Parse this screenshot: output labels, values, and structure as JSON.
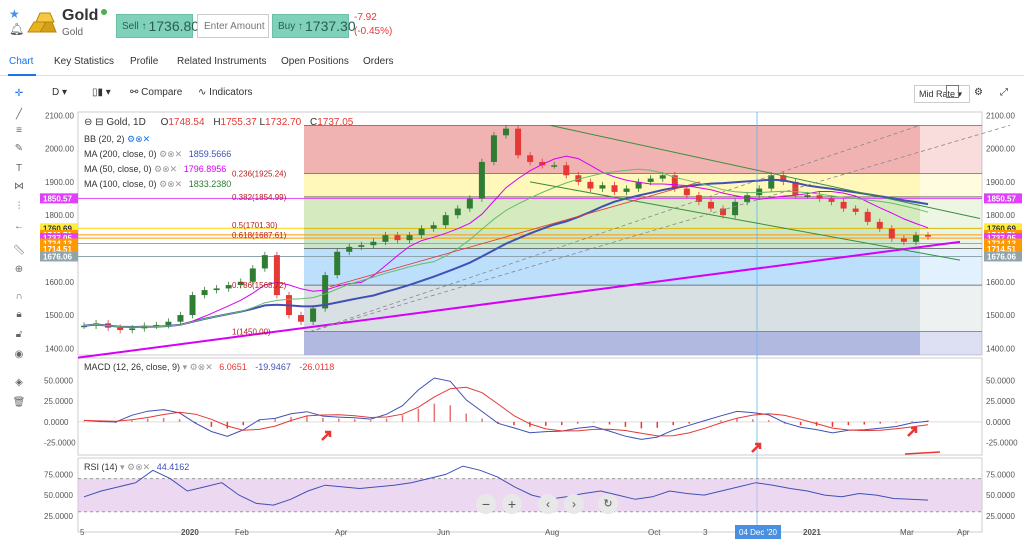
{
  "instrument": {
    "name": "Gold",
    "subname": "Gold",
    "sell_label": "Sell",
    "sell_price": "1736.80",
    "amount_placeholder": "Enter Amount",
    "buy_label": "Buy",
    "buy_price": "1737.30",
    "change_abs": "-7.92",
    "change_pct": "(-0.45%)"
  },
  "tabs": [
    "Chart",
    "Key Statistics",
    "Profile",
    "Related Instruments",
    "Open Positions",
    "Orders"
  ],
  "toolbar": {
    "interval": "D",
    "compare": "Compare",
    "indicators": "Indicators",
    "mid_rate": "Mid Rate"
  },
  "legend": {
    "symbol": "Gold, 1D",
    "open_label": "O",
    "open": "1748.54",
    "high_label": "H",
    "high": "1755.37",
    "low_label": "L",
    "low": "1732.70",
    "close_label": "C",
    "close": "1737.05",
    "bb": "BB (20, 2)",
    "ma200": "MA (200, close, 0)",
    "ma200_val": "1859.5666",
    "ma50": "MA (50, close, 0)",
    "ma50_val": "1796.8956",
    "ma100": "MA (100, close, 0)",
    "ma100_val": "1833.2380"
  },
  "fib_labels": [
    {
      "text": "0.236(1925.24)",
      "price": 1925
    },
    {
      "text": "0.382(1854.99)",
      "price": 1855
    },
    {
      "text": "0.5(1701.30)",
      "price": 1770
    },
    {
      "text": "0.618(1687.61)",
      "price": 1740
    },
    {
      "text": "0.786(1568.72)",
      "price": 1590
    },
    {
      "text": "1(1450.00)",
      "price": 1450
    }
  ],
  "price_axis": {
    "ticks": [
      2100,
      2000,
      1900,
      1800,
      1700,
      1600,
      1500,
      1400
    ],
    "tick_labels": [
      "2100.00",
      "2000.00",
      "1900.00",
      "1800.00",
      "1700.00",
      "1600.00",
      "1500.00",
      "1400.00"
    ],
    "left_tags": [
      {
        "text": "1850.57",
        "price": 1850.57,
        "color": "#e040fb"
      },
      {
        "text": "1760.69",
        "price": 1760.69,
        "color": "#ffeb3b"
      },
      {
        "text": "1740.71",
        "price": 1740.71,
        "color": "#ff9800"
      },
      {
        "text": "1737.05",
        "price": 1731,
        "color": "#e040fb"
      },
      {
        "text": "1724.13",
        "price": 1715,
        "color": "#ff9800"
      },
      {
        "text": "1714.51",
        "price": 1699,
        "color": "#ff9800"
      },
      {
        "text": "1676.06",
        "price": 1676.06,
        "color": "#90a4ae"
      }
    ]
  },
  "macd": {
    "label": "MACD (12, 26, close, 9)",
    "v1": "6.0651",
    "v2": "-19.9467",
    "v3": "-26.0118",
    "ticks": [
      "50.0000",
      "25.0000",
      "0.0000",
      "-25.0000"
    ]
  },
  "rsi": {
    "label": "RSI (14)",
    "value": "44.4162",
    "ticks": [
      "75.0000",
      "50.0000",
      "25.0000"
    ]
  },
  "time_axis": {
    "labels": [
      "5",
      "2020",
      "Feb",
      "Apr",
      "Jun",
      "Aug",
      "Oct",
      "3",
      "Dec",
      "2021",
      "Mar",
      "Apr"
    ],
    "cursor_label": "04 Dec '20"
  },
  "colors": {
    "accent": "#1a73e8",
    "buy_sell": "#7fd1b9",
    "up": "#2e7d32",
    "down": "#e53935",
    "ma200": "#3f51b5",
    "trend": "#d500f9"
  },
  "chart_data": {
    "type": "candlestick",
    "price_series_close": [
      1468,
      1475,
      1462,
      1455,
      1460,
      1468,
      1470,
      1480,
      1500,
      1560,
      1575,
      1580,
      1590,
      1600,
      1640,
      1680,
      1560,
      1500,
      1480,
      1520,
      1620,
      1690,
      1705,
      1710,
      1720,
      1740,
      1725,
      1740,
      1760,
      1770,
      1800,
      1820,
      1850,
      1960,
      2040,
      2060,
      1980,
      1960,
      1950,
      1950,
      1920,
      1900,
      1880,
      1890,
      1870,
      1880,
      1900,
      1910,
      1920,
      1880,
      1860,
      1840,
      1820,
      1800,
      1840,
      1860,
      1880,
      1920,
      1900,
      1860,
      1860,
      1850,
      1840,
      1820,
      1810,
      1780,
      1760,
      1730,
      1720,
      1740,
      1736
    ],
    "macd_hist_series": [
      2,
      -1,
      -3,
      5,
      10,
      12,
      8,
      -5,
      -15,
      -20,
      -10,
      5,
      8,
      15,
      18,
      12,
      10,
      8,
      5,
      10,
      20,
      40,
      55,
      50,
      25,
      10,
      -5,
      -10,
      -15,
      -12,
      -10,
      -5,
      -2,
      -8,
      -15,
      -20,
      -18,
      -10,
      -5,
      0,
      5,
      10,
      8,
      5,
      -5,
      -10,
      -12,
      -15,
      -10,
      -8,
      -5,
      -2,
      3,
      5
    ],
    "rsi_series": [
      48,
      55,
      60,
      65,
      80,
      70,
      55,
      60,
      65,
      50,
      40,
      38,
      45,
      55,
      62,
      60,
      58,
      60,
      62,
      65,
      70,
      75,
      85,
      80,
      72,
      60,
      50,
      45,
      48,
      52,
      55,
      50,
      45,
      48,
      55,
      52,
      50,
      55,
      60,
      65,
      62,
      58,
      55,
      50,
      48,
      52,
      50,
      46,
      45,
      44
    ],
    "ylim_price": [
      1380,
      2110
    ],
    "ylim_macd": [
      -40,
      65
    ],
    "ylim_rsi": [
      20,
      90
    ]
  }
}
